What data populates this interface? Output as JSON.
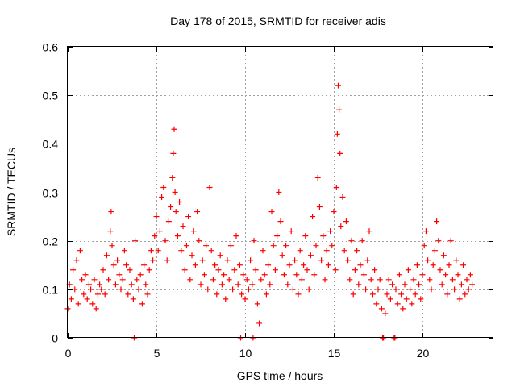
{
  "chart_data": {
    "type": "scatter",
    "title": "Day 178 of 2015, SRMTID for receiver adis",
    "xlabel": "GPS time / hours",
    "ylabel": "SRMTID / TECUs",
    "xlim": [
      0,
      24
    ],
    "ylim": [
      0,
      0.6
    ],
    "x_ticks": [
      0,
      5,
      10,
      15,
      20
    ],
    "x_tick_labels": [
      "0",
      "5",
      "10",
      "15",
      "20"
    ],
    "y_ticks": [
      0,
      0.1,
      0.2,
      0.3,
      0.4,
      0.5,
      0.6
    ],
    "y_tick_labels": [
      "0",
      "0.1",
      "0.2",
      "0.3",
      "0.4",
      "0.5",
      "0.6"
    ],
    "grid": true,
    "marker": "+",
    "color": "#ff0000",
    "series": [
      {
        "name": "SRMTID",
        "points": [
          [
            0.0,
            0.06
          ],
          [
            0.1,
            0.11
          ],
          [
            0.2,
            0.08
          ],
          [
            0.3,
            0.14
          ],
          [
            0.4,
            0.1
          ],
          [
            0.5,
            0.16
          ],
          [
            0.6,
            0.07
          ],
          [
            0.7,
            0.18
          ],
          [
            0.8,
            0.12
          ],
          [
            0.9,
            0.09
          ],
          [
            1.0,
            0.13
          ],
          [
            1.1,
            0.08
          ],
          [
            1.2,
            0.11
          ],
          [
            1.3,
            0.1
          ],
          [
            1.4,
            0.07
          ],
          [
            1.5,
            0.12
          ],
          [
            1.6,
            0.06
          ],
          [
            1.7,
            0.09
          ],
          [
            1.8,
            0.11
          ],
          [
            1.9,
            0.1
          ],
          [
            2.0,
            0.14
          ],
          [
            2.1,
            0.09
          ],
          [
            2.2,
            0.17
          ],
          [
            2.3,
            0.12
          ],
          [
            2.4,
            0.22
          ],
          [
            2.45,
            0.26
          ],
          [
            2.5,
            0.19
          ],
          [
            2.6,
            0.15
          ],
          [
            2.7,
            0.11
          ],
          [
            2.8,
            0.16
          ],
          [
            2.9,
            0.13
          ],
          [
            3.0,
            0.1
          ],
          [
            3.1,
            0.12
          ],
          [
            3.2,
            0.18
          ],
          [
            3.3,
            0.15
          ],
          [
            3.4,
            0.09
          ],
          [
            3.5,
            0.14
          ],
          [
            3.6,
            0.11
          ],
          [
            3.7,
            0.08
          ],
          [
            3.8,
            0.2
          ],
          [
            3.9,
            0.12
          ],
          [
            4.0,
            0.1
          ],
          [
            4.1,
            0.13
          ],
          [
            4.2,
            0.07
          ],
          [
            4.3,
            0.15
          ],
          [
            4.4,
            0.11
          ],
          [
            4.5,
            0.09
          ],
          [
            4.6,
            0.14
          ],
          [
            4.7,
            0.18
          ],
          [
            4.8,
            0.16
          ],
          [
            4.9,
            0.21
          ],
          [
            5.0,
            0.25
          ],
          [
            5.1,
            0.18
          ],
          [
            5.2,
            0.22
          ],
          [
            5.3,
            0.29
          ],
          [
            5.4,
            0.31
          ],
          [
            5.5,
            0.2
          ],
          [
            5.6,
            0.16
          ],
          [
            5.7,
            0.24
          ],
          [
            5.8,
            0.27
          ],
          [
            5.9,
            0.33
          ],
          [
            5.95,
            0.38
          ],
          [
            6.0,
            0.43
          ],
          [
            6.05,
            0.3
          ],
          [
            6.1,
            0.26
          ],
          [
            6.2,
            0.21
          ],
          [
            6.3,
            0.28
          ],
          [
            6.4,
            0.18
          ],
          [
            6.5,
            0.23
          ],
          [
            6.6,
            0.14
          ],
          [
            6.7,
            0.19
          ],
          [
            6.8,
            0.25
          ],
          [
            6.9,
            0.12
          ],
          [
            7.0,
            0.17
          ],
          [
            7.1,
            0.22
          ],
          [
            7.2,
            0.15
          ],
          [
            7.3,
            0.26
          ],
          [
            7.4,
            0.2
          ],
          [
            7.5,
            0.11
          ],
          [
            7.6,
            0.16
          ],
          [
            7.7,
            0.13
          ],
          [
            7.8,
            0.19
          ],
          [
            7.9,
            0.1
          ],
          [
            8.0,
            0.31
          ],
          [
            8.1,
            0.18
          ],
          [
            8.2,
            0.12
          ],
          [
            8.3,
            0.15
          ],
          [
            8.4,
            0.09
          ],
          [
            8.5,
            0.14
          ],
          [
            8.6,
            0.17
          ],
          [
            8.7,
            0.11
          ],
          [
            8.8,
            0.13
          ],
          [
            8.9,
            0.08
          ],
          [
            9.0,
            0.16
          ],
          [
            9.1,
            0.12
          ],
          [
            9.2,
            0.19
          ],
          [
            9.3,
            0.1
          ],
          [
            9.4,
            0.14
          ],
          [
            9.5,
            0.21
          ],
          [
            9.6,
            0.11
          ],
          [
            9.7,
            0.15
          ],
          [
            9.8,
            0.09
          ],
          [
            9.9,
            0.13
          ],
          [
            10.0,
            0.08
          ],
          [
            10.1,
            0.12
          ],
          [
            10.2,
            0.1
          ],
          [
            10.3,
            0.16
          ],
          [
            10.4,
            0.11
          ],
          [
            10.5,
            0.2
          ],
          [
            10.6,
            0.14
          ],
          [
            10.7,
            0.07
          ],
          [
            10.8,
            0.03
          ],
          [
            10.9,
            0.12
          ],
          [
            11.0,
            0.18
          ],
          [
            11.1,
            0.13
          ],
          [
            11.2,
            0.09
          ],
          [
            11.3,
            0.15
          ],
          [
            11.4,
            0.11
          ],
          [
            11.5,
            0.26
          ],
          [
            11.6,
            0.19
          ],
          [
            11.7,
            0.14
          ],
          [
            11.8,
            0.21
          ],
          [
            11.9,
            0.3
          ],
          [
            12.0,
            0.24
          ],
          [
            12.1,
            0.17
          ],
          [
            12.2,
            0.13
          ],
          [
            12.3,
            0.19
          ],
          [
            12.4,
            0.11
          ],
          [
            12.5,
            0.15
          ],
          [
            12.6,
            0.22
          ],
          [
            12.7,
            0.1
          ],
          [
            12.8,
            0.16
          ],
          [
            12.9,
            0.13
          ],
          [
            13.0,
            0.09
          ],
          [
            13.1,
            0.18
          ],
          [
            13.2,
            0.12
          ],
          [
            13.3,
            0.15
          ],
          [
            13.4,
            0.21
          ],
          [
            13.5,
            0.14
          ],
          [
            13.6,
            0.1
          ],
          [
            13.7,
            0.17
          ],
          [
            13.8,
            0.25
          ],
          [
            13.9,
            0.13
          ],
          [
            14.0,
            0.19
          ],
          [
            14.1,
            0.33
          ],
          [
            14.2,
            0.27
          ],
          [
            14.3,
            0.16
          ],
          [
            14.4,
            0.21
          ],
          [
            14.5,
            0.12
          ],
          [
            14.6,
            0.18
          ],
          [
            14.7,
            0.15
          ],
          [
            14.8,
            0.22
          ],
          [
            14.9,
            0.19
          ],
          [
            15.0,
            0.26
          ],
          [
            15.1,
            0.14
          ],
          [
            15.15,
            0.31
          ],
          [
            15.2,
            0.42
          ],
          [
            15.25,
            0.52
          ],
          [
            15.3,
            0.47
          ],
          [
            15.35,
            0.38
          ],
          [
            15.4,
            0.23
          ],
          [
            15.5,
            0.29
          ],
          [
            15.6,
            0.18
          ],
          [
            15.7,
            0.24
          ],
          [
            15.8,
            0.16
          ],
          [
            15.9,
            0.12
          ],
          [
            16.0,
            0.2
          ],
          [
            16.1,
            0.09
          ],
          [
            16.2,
            0.14
          ],
          [
            16.3,
            0.18
          ],
          [
            16.4,
            0.11
          ],
          [
            16.5,
            0.15
          ],
          [
            16.6,
            0.2
          ],
          [
            16.7,
            0.13
          ],
          [
            16.8,
            0.1
          ],
          [
            16.9,
            0.16
          ],
          [
            17.0,
            0.22
          ],
          [
            17.1,
            0.12
          ],
          [
            17.2,
            0.09
          ],
          [
            17.3,
            0.14
          ],
          [
            17.4,
            0.07
          ],
          [
            17.5,
            0.1
          ],
          [
            17.6,
            0.12
          ],
          [
            17.7,
            0.06
          ],
          [
            17.8,
            0.0
          ],
          [
            17.9,
            0.05
          ],
          [
            18.0,
            0.09
          ],
          [
            18.1,
            0.12
          ],
          [
            18.2,
            0.08
          ],
          [
            18.3,
            0.11
          ],
          [
            18.4,
            0.0
          ],
          [
            18.5,
            0.1
          ],
          [
            18.6,
            0.07
          ],
          [
            18.7,
            0.13
          ],
          [
            18.8,
            0.09
          ],
          [
            18.9,
            0.06
          ],
          [
            19.0,
            0.11
          ],
          [
            19.1,
            0.08
          ],
          [
            19.2,
            0.14
          ],
          [
            19.3,
            0.1
          ],
          [
            19.4,
            0.07
          ],
          [
            19.5,
            0.12
          ],
          [
            19.6,
            0.09
          ],
          [
            19.7,
            0.15
          ],
          [
            19.8,
            0.11
          ],
          [
            19.9,
            0.08
          ],
          [
            20.0,
            0.13
          ],
          [
            20.1,
            0.19
          ],
          [
            20.2,
            0.22
          ],
          [
            20.3,
            0.16
          ],
          [
            20.4,
            0.12
          ],
          [
            20.5,
            0.1
          ],
          [
            20.6,
            0.15
          ],
          [
            20.7,
            0.18
          ],
          [
            20.8,
            0.24
          ],
          [
            20.9,
            0.2
          ],
          [
            21.0,
            0.14
          ],
          [
            21.1,
            0.11
          ],
          [
            21.2,
            0.17
          ],
          [
            21.3,
            0.13
          ],
          [
            21.4,
            0.09
          ],
          [
            21.5,
            0.15
          ],
          [
            21.6,
            0.2
          ],
          [
            21.7,
            0.12
          ],
          [
            21.8,
            0.1
          ],
          [
            21.9,
            0.16
          ],
          [
            22.0,
            0.13
          ],
          [
            22.1,
            0.08
          ],
          [
            22.2,
            0.11
          ],
          [
            22.3,
            0.15
          ],
          [
            22.4,
            0.09
          ],
          [
            22.5,
            0.12
          ],
          [
            22.6,
            0.1
          ],
          [
            22.7,
            0.13
          ],
          [
            22.8,
            0.11
          ],
          [
            3.75,
            0.0
          ],
          [
            9.75,
            0.0
          ],
          [
            10.45,
            0.0
          ],
          [
            17.75,
            0.0
          ],
          [
            18.45,
            0.0
          ]
        ]
      }
    ]
  }
}
